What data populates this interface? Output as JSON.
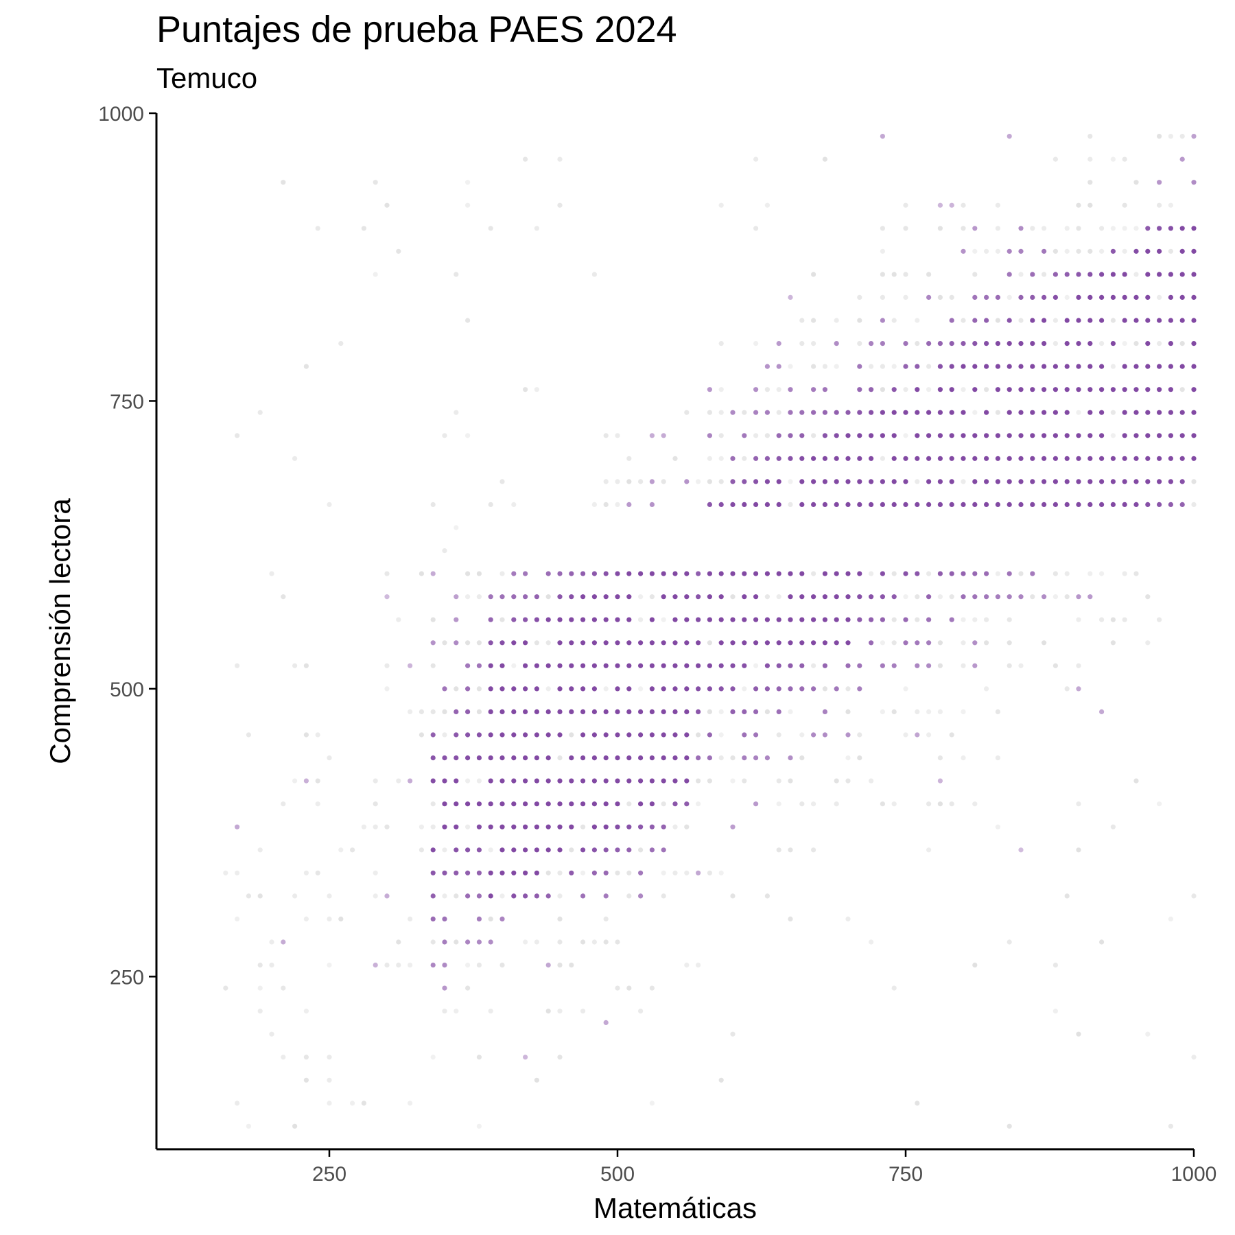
{
  "chart_data": {
    "type": "scatter",
    "title": "Puntajes de prueba PAES 2024",
    "subtitle": "Temuco",
    "xlabel": "Matemáticas",
    "ylabel": "Comprensión lectora",
    "xlim": [
      100,
      1000
    ],
    "ylim": [
      100,
      1000
    ],
    "xticks": [
      250,
      500,
      750,
      1000
    ],
    "yticks": [
      250,
      500,
      750,
      1000
    ],
    "grid": false,
    "x_step": 20,
    "y_step": 20,
    "point_color": "#7b3f9e",
    "faint_color": "#c8c8c8",
    "dense_regions": [
      {
        "x": [
          390,
          560
        ],
        "y": [
          320,
          620
        ]
      },
      {
        "x": [
          580,
          700
        ],
        "y": [
          540,
          800
        ]
      },
      {
        "x": [
          700,
          1000
        ],
        "y": [
          640,
          900
        ]
      }
    ],
    "outlier_points": [
      {
        "x": 170,
        "y": 380
      },
      {
        "x": 490,
        "y": 210
      },
      {
        "x": 730,
        "y": 980
      },
      {
        "x": 840,
        "y": 980
      },
      {
        "x": 920,
        "y": 480
      },
      {
        "x": 900,
        "y": 500
      }
    ]
  }
}
